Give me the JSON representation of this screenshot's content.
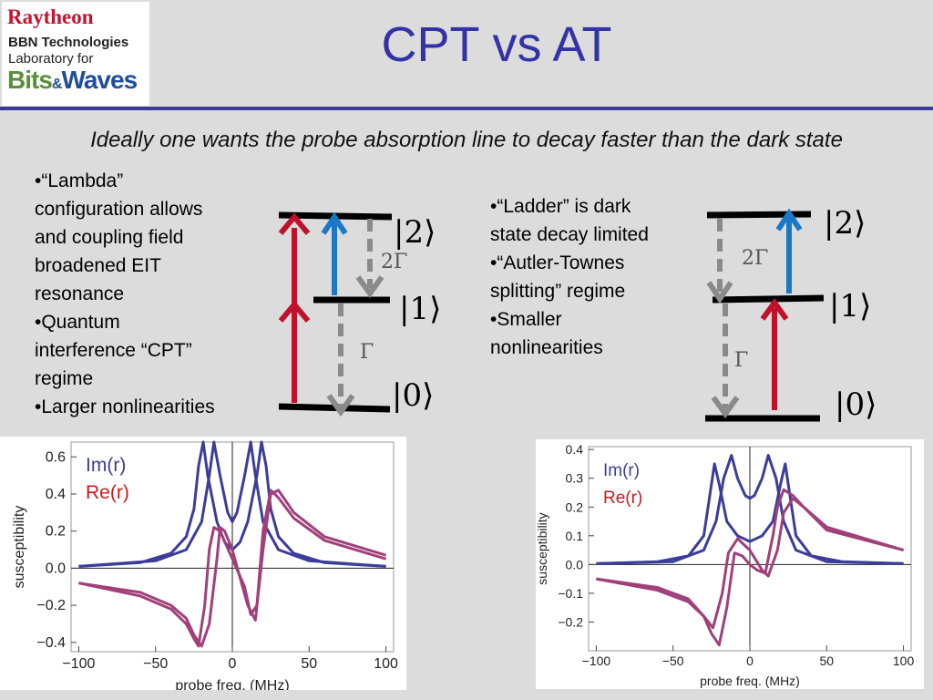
{
  "logo": {
    "line1": "Raytheon",
    "line2": "BBN Technologies",
    "line3": "Laboratory for",
    "bits": "Bits",
    "amp": "&",
    "waves": "Waves"
  },
  "title": "CPT vs AT",
  "subtitle": "Ideally one wants the probe absorption line to decay faster than the dark state",
  "left_bullets": [
    "•“Lambda”",
    "configuration allows",
    "and coupling field",
    "broadened EIT",
    "resonance",
    "•Quantum",
    "interference “CPT”",
    "regime",
    "•Larger nonlinearities"
  ],
  "right_bullets": [
    "•“Ladder” is dark",
    "state decay limited",
    "•“Autler-Townes",
    "splitting” regime",
    "•Smaller",
    "nonlinearities"
  ],
  "diagrams": {
    "left": {
      "ket2": "|2⟩",
      "ket1": "|1⟩",
      "ket0": "|0⟩",
      "rate_upper": "2Γ",
      "rate_lower": "Γ"
    },
    "right": {
      "ket2": "|2⟩",
      "ket1": "|1⟩",
      "ket0": "|0⟩",
      "rate_upper": "2Γ",
      "rate_lower": "Γ"
    }
  },
  "colors": {
    "im": "#3b3d9a",
    "re": "#a0407a",
    "title": "#3333a8",
    "red_arrow": "#c0102a",
    "blue_arrow": "#1a78c8",
    "grey_arrow": "#8a8a8a"
  },
  "chart_data": [
    {
      "type": "line",
      "xlabel": "probe freq. (MHz)",
      "ylabel": "susceptibility",
      "xlim": [
        -105,
        105
      ],
      "ylim": [
        -0.45,
        0.68
      ],
      "xticks": [
        -100,
        -50,
        0,
        50,
        100
      ],
      "yticks": [
        -0.4,
        -0.2,
        0.0,
        0.2,
        0.4,
        0.6
      ],
      "ytick_labels": [
        "−0.4",
        "−0.2",
        "0.0",
        "0.2",
        "0.4",
        "0.6"
      ],
      "xtick_labels": [
        "−100",
        "−50",
        "0",
        "50",
        "100"
      ],
      "legend": [
        "Im(r)",
        "Re(r)"
      ],
      "legend_position": "top-left",
      "series": [
        {
          "name": "Im(r)",
          "curve": "A",
          "values": [
            [
              -100,
              0.01
            ],
            [
              -60,
              0.03
            ],
            [
              -40,
              0.08
            ],
            [
              -30,
              0.17
            ],
            [
              -25,
              0.32
            ],
            [
              -22,
              0.55
            ],
            [
              -19,
              0.68
            ],
            [
              -16,
              0.5
            ],
            [
              -10,
              0.25
            ],
            [
              -5,
              0.14
            ],
            [
              0,
              0.1
            ],
            [
              5,
              0.14
            ],
            [
              10,
              0.25
            ],
            [
              16,
              0.5
            ],
            [
              19,
              0.68
            ],
            [
              22,
              0.55
            ],
            [
              25,
              0.32
            ],
            [
              30,
              0.17
            ],
            [
              40,
              0.08
            ],
            [
              60,
              0.03
            ],
            [
              100,
              0.01
            ]
          ]
        },
        {
          "name": "Im(r)",
          "curve": "B",
          "values": [
            [
              -100,
              0.01
            ],
            [
              -50,
              0.04
            ],
            [
              -30,
              0.1
            ],
            [
              -20,
              0.25
            ],
            [
              -15,
              0.5
            ],
            [
              -12,
              0.68
            ],
            [
              -8,
              0.5
            ],
            [
              -3,
              0.3
            ],
            [
              0,
              0.25
            ],
            [
              3,
              0.3
            ],
            [
              8,
              0.5
            ],
            [
              12,
              0.68
            ],
            [
              15,
              0.5
            ],
            [
              20,
              0.25
            ],
            [
              30,
              0.1
            ],
            [
              50,
              0.04
            ],
            [
              100,
              0.01
            ]
          ]
        },
        {
          "name": "Re(r)",
          "curve": "A",
          "values": [
            [
              -100,
              -0.08
            ],
            [
              -60,
              -0.13
            ],
            [
              -40,
              -0.2
            ],
            [
              -30,
              -0.27
            ],
            [
              -25,
              -0.36
            ],
            [
              -20,
              -0.42
            ],
            [
              -15,
              -0.3
            ],
            [
              -10,
              0.05
            ],
            [
              -8,
              0.22
            ],
            [
              -5,
              0.2
            ],
            [
              0,
              0.1
            ],
            [
              5,
              -0.05
            ],
            [
              10,
              -0.2
            ],
            [
              15,
              -0.28
            ],
            [
              20,
              0.1
            ],
            [
              25,
              0.4
            ],
            [
              30,
              0.42
            ],
            [
              40,
              0.3
            ],
            [
              60,
              0.17
            ],
            [
              100,
              0.07
            ]
          ]
        },
        {
          "name": "Re(r)",
          "curve": "B",
          "values": [
            [
              -100,
              -0.08
            ],
            [
              -60,
              -0.15
            ],
            [
              -40,
              -0.22
            ],
            [
              -30,
              -0.3
            ],
            [
              -25,
              -0.38
            ],
            [
              -22,
              -0.42
            ],
            [
              -18,
              -0.2
            ],
            [
              -15,
              0.1
            ],
            [
              -12,
              0.22
            ],
            [
              -8,
              0.2
            ],
            [
              0,
              0.05
            ],
            [
              8,
              -0.1
            ],
            [
              12,
              -0.25
            ],
            [
              16,
              -0.2
            ],
            [
              20,
              0.2
            ],
            [
              25,
              0.42
            ],
            [
              30,
              0.38
            ],
            [
              40,
              0.27
            ],
            [
              60,
              0.15
            ],
            [
              100,
              0.05
            ]
          ]
        }
      ]
    },
    {
      "type": "line",
      "xlabel": "probe freq. (MHz)",
      "ylabel": "susceptibility",
      "xlim": [
        -105,
        105
      ],
      "ylim": [
        -0.3,
        0.41
      ],
      "xticks": [
        -100,
        -50,
        0,
        50,
        100
      ],
      "yticks": [
        -0.2,
        -0.1,
        0.0,
        0.1,
        0.2,
        0.3,
        0.4
      ],
      "ytick_labels": [
        "−0.2",
        "−0.1",
        "0.0",
        "0.1",
        "0.2",
        "0.3",
        "0.4"
      ],
      "xtick_labels": [
        "−100",
        "−50",
        "0",
        "50",
        "100"
      ],
      "legend": [
        "Im(r)",
        "Re(r)"
      ],
      "legend_position": "top-left",
      "series": [
        {
          "name": "Im(r)",
          "curve": "A",
          "values": [
            [
              -100,
              0.003
            ],
            [
              -60,
              0.01
            ],
            [
              -40,
              0.03
            ],
            [
              -30,
              0.1
            ],
            [
              -25,
              0.28
            ],
            [
              -23,
              0.35
            ],
            [
              -20,
              0.28
            ],
            [
              -15,
              0.15
            ],
            [
              -8,
              0.1
            ],
            [
              0,
              0.08
            ],
            [
              8,
              0.1
            ],
            [
              15,
              0.15
            ],
            [
              20,
              0.28
            ],
            [
              23,
              0.35
            ],
            [
              25,
              0.28
            ],
            [
              30,
              0.1
            ],
            [
              40,
              0.03
            ],
            [
              60,
              0.01
            ],
            [
              100,
              0.003
            ]
          ]
        },
        {
          "name": "Im(r)",
          "curve": "B",
          "values": [
            [
              -100,
              0.003
            ],
            [
              -50,
              0.01
            ],
            [
              -30,
              0.05
            ],
            [
              -22,
              0.15
            ],
            [
              -17,
              0.3
            ],
            [
              -12,
              0.38
            ],
            [
              -8,
              0.3
            ],
            [
              -3,
              0.24
            ],
            [
              0,
              0.23
            ],
            [
              3,
              0.24
            ],
            [
              8,
              0.3
            ],
            [
              12,
              0.38
            ],
            [
              17,
              0.3
            ],
            [
              22,
              0.15
            ],
            [
              30,
              0.05
            ],
            [
              50,
              0.01
            ],
            [
              100,
              0.003
            ]
          ]
        },
        {
          "name": "Re(r)",
          "curve": "A",
          "values": [
            [
              -100,
              -0.05
            ],
            [
              -60,
              -0.08
            ],
            [
              -40,
              -0.12
            ],
            [
              -30,
              -0.18
            ],
            [
              -25,
              -0.24
            ],
            [
              -20,
              -0.28
            ],
            [
              -15,
              -0.15
            ],
            [
              -10,
              0.04
            ],
            [
              -5,
              0.03
            ],
            [
              0,
              0.0
            ],
            [
              5,
              -0.02
            ],
            [
              10,
              -0.03
            ],
            [
              15,
              0.1
            ],
            [
              18,
              0.2
            ],
            [
              22,
              0.26
            ],
            [
              28,
              0.24
            ],
            [
              35,
              0.2
            ],
            [
              50,
              0.12
            ],
            [
              100,
              0.05
            ]
          ]
        },
        {
          "name": "Re(r)",
          "curve": "B",
          "values": [
            [
              -100,
              -0.05
            ],
            [
              -60,
              -0.09
            ],
            [
              -40,
              -0.13
            ],
            [
              -30,
              -0.18
            ],
            [
              -24,
              -0.22
            ],
            [
              -18,
              -0.1
            ],
            [
              -14,
              0.04
            ],
            [
              -8,
              0.09
            ],
            [
              0,
              0.05
            ],
            [
              8,
              -0.02
            ],
            [
              12,
              -0.04
            ],
            [
              18,
              0.05
            ],
            [
              22,
              0.18
            ],
            [
              28,
              0.23
            ],
            [
              35,
              0.2
            ],
            [
              50,
              0.13
            ],
            [
              100,
              0.05
            ]
          ]
        }
      ]
    }
  ]
}
